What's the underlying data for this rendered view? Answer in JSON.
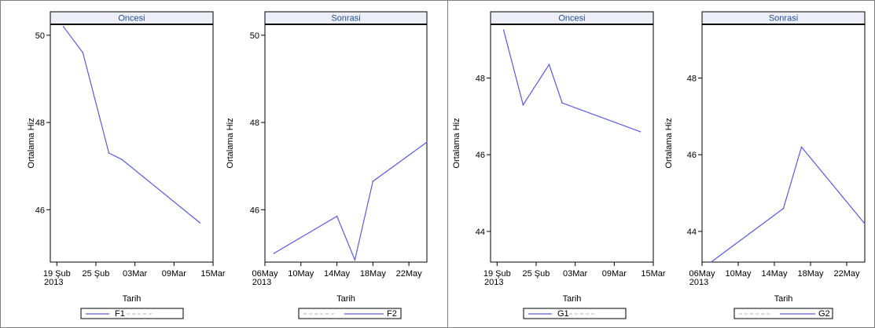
{
  "colors": {
    "line": "#5a5adf",
    "header_text": "#1f4e9a",
    "header_bg": "#eeeef7",
    "frame": "#000000",
    "ref": "#b0b0b0"
  },
  "chart_data": [
    {
      "type": "line",
      "title": "Oncesi",
      "xlabel": "Tarih",
      "ylabel": "Ortalama Hiz",
      "ylim": [
        44.8,
        50.25
      ],
      "xlim": [
        "2013-02-18",
        "2013-03-15"
      ],
      "yticks": [
        46,
        48,
        50
      ],
      "xticks": [
        {
          "date": "2013-02-19",
          "label": "19 Şub",
          "sublabel": "2013"
        },
        {
          "date": "2013-02-25",
          "label": "25 Şub"
        },
        {
          "date": "2013-03-03",
          "label": "03Mar"
        },
        {
          "date": "2013-03-09",
          "label": "09Mar"
        },
        {
          "date": "2013-03-15",
          "label": "15Mar"
        }
      ],
      "series": [
        {
          "name": "F1",
          "x": [
            "2013-02-20",
            "2013-02-23",
            "2013-02-27",
            "2013-03-01",
            "2013-03-13"
          ],
          "y": [
            50.2,
            49.6,
            47.3,
            47.15,
            45.7
          ]
        }
      ],
      "legend": {
        "solid_label": "F1",
        "position": "bottom"
      }
    },
    {
      "type": "line",
      "title": "Sonrasi",
      "xlabel": "Tarih",
      "ylabel": "Ortalama Hiz",
      "ylim": [
        44.8,
        50.25
      ],
      "xlim": [
        "2013-05-06",
        "2013-05-24"
      ],
      "yticks": [
        46,
        48,
        50
      ],
      "xticks": [
        {
          "date": "2013-05-06",
          "label": "06May",
          "sublabel": "2013"
        },
        {
          "date": "2013-05-10",
          "label": "10May"
        },
        {
          "date": "2013-05-14",
          "label": "14May"
        },
        {
          "date": "2013-05-18",
          "label": "18May"
        },
        {
          "date": "2013-05-22",
          "label": "22May"
        }
      ],
      "series": [
        {
          "name": "F2",
          "x": [
            "2013-05-07",
            "2013-05-14",
            "2013-05-16",
            "2013-05-18",
            "2013-05-24"
          ],
          "y": [
            45.0,
            45.85,
            44.85,
            46.65,
            47.55
          ]
        }
      ],
      "legend": {
        "solid_label": "F2",
        "position": "bottom"
      }
    },
    {
      "type": "line",
      "title": "Oncesi",
      "xlabel": "Tarih",
      "ylabel": "Ortalama Hiz",
      "ylim": [
        43.2,
        49.4
      ],
      "xlim": [
        "2013-02-18",
        "2013-03-15"
      ],
      "yticks": [
        44,
        46,
        48
      ],
      "xticks": [
        {
          "date": "2013-02-19",
          "label": "19 Şub",
          "sublabel": "2013"
        },
        {
          "date": "2013-02-25",
          "label": "25 Şub"
        },
        {
          "date": "2013-03-03",
          "label": "03Mar"
        },
        {
          "date": "2013-03-09",
          "label": "09Mar"
        },
        {
          "date": "2013-03-15",
          "label": "15Mar"
        }
      ],
      "series": [
        {
          "name": "G1",
          "x": [
            "2013-02-20",
            "2013-02-23",
            "2013-02-27",
            "2013-03-01",
            "2013-03-13"
          ],
          "y": [
            49.25,
            47.3,
            48.35,
            47.35,
            46.6
          ]
        }
      ],
      "legend": {
        "solid_label": "G1",
        "position": "bottom"
      }
    },
    {
      "type": "line",
      "title": "Sonrasi",
      "xlabel": "Tarih",
      "ylabel": "Ortalama Hiz",
      "ylim": [
        43.2,
        49.4
      ],
      "xlim": [
        "2013-05-06",
        "2013-05-24"
      ],
      "yticks": [
        44,
        46,
        48
      ],
      "xticks": [
        {
          "date": "2013-05-06",
          "label": "06May",
          "sublabel": "2013"
        },
        {
          "date": "2013-05-10",
          "label": "10May"
        },
        {
          "date": "2013-05-14",
          "label": "14May"
        },
        {
          "date": "2013-05-18",
          "label": "18May"
        },
        {
          "date": "2013-05-22",
          "label": "22May"
        }
      ],
      "series": [
        {
          "name": "G2",
          "x": [
            "2013-05-07",
            "2013-05-15",
            "2013-05-17",
            "2013-05-24"
          ],
          "y": [
            43.2,
            44.6,
            46.2,
            44.2
          ]
        }
      ],
      "legend": {
        "solid_label": "G2",
        "position": "bottom"
      }
    }
  ]
}
